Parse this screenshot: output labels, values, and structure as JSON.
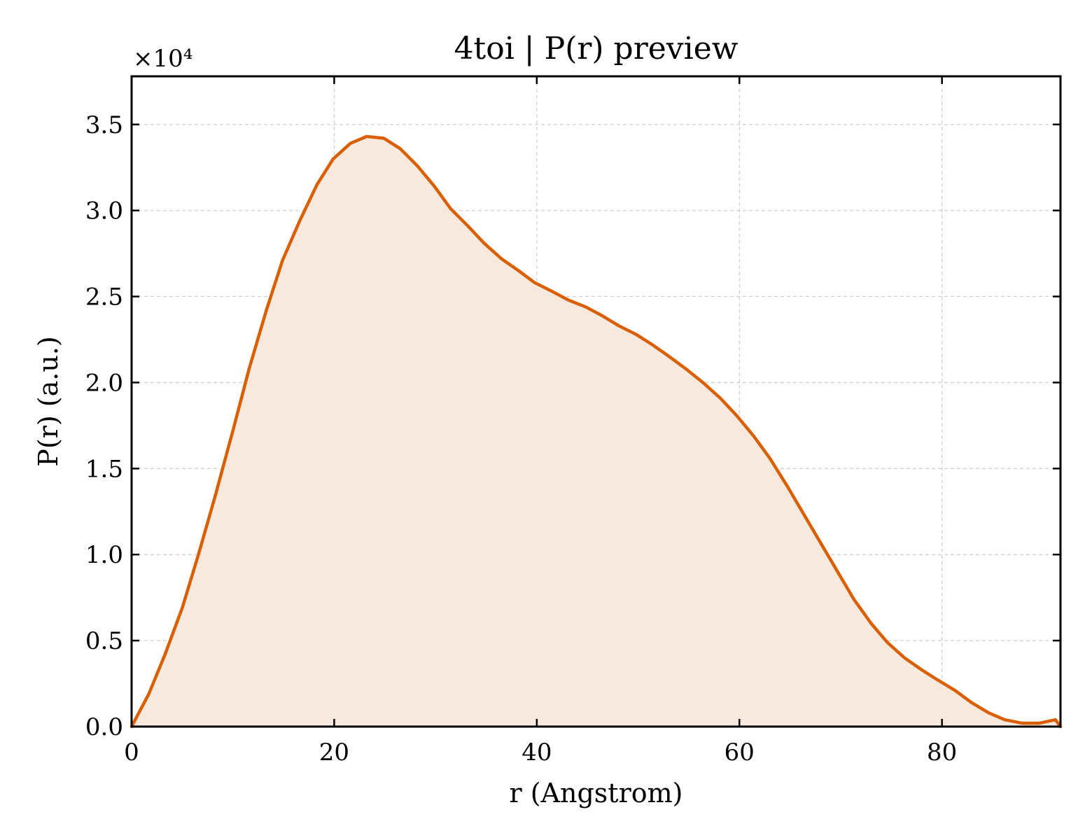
{
  "chart_data": {
    "type": "area",
    "title": "4toi | P(r) preview",
    "xlabel": "r (Angstrom)",
    "ylabel": "P(r) (a.u.)",
    "y_offset_label": "×10⁴",
    "xlim": [
      0,
      91.7
    ],
    "ylim": [
      0,
      37800
    ],
    "grid": true,
    "x_ticks": [
      0,
      20,
      40,
      60,
      80
    ],
    "x_tick_labels": [
      "0",
      "20",
      "40",
      "60",
      "80"
    ],
    "y_ticks": [
      0,
      5000,
      10000,
      15000,
      20000,
      25000,
      30000,
      35000
    ],
    "y_tick_labels": [
      "0.0",
      "0.5",
      "1.0",
      "1.5",
      "2.0",
      "2.5",
      "3.0",
      "3.5"
    ],
    "line_color": "#d95f02",
    "fill_color": "#f8e9df",
    "series": [
      {
        "x": [
          0,
          1.7,
          3.3,
          5.0,
          6.6,
          8.3,
          10.0,
          11.6,
          13.3,
          14.9,
          16.6,
          18.3,
          19.9,
          21.6,
          23.2,
          24.9,
          26.5,
          28.2,
          29.9,
          31.5,
          33.2,
          34.8,
          36.5,
          38.2,
          39.8,
          41.5,
          43.1,
          44.8,
          46.4,
          48.1,
          49.8,
          51.4,
          53.1,
          54.7,
          56.4,
          58.1,
          59.7,
          61.4,
          63.0,
          64.7,
          66.3,
          68.0,
          69.7,
          71.3,
          73.0,
          74.6,
          76.3,
          78.0,
          79.6,
          81.3,
          82.9,
          84.6,
          86.2,
          87.9,
          89.6,
          91.2,
          91.7
        ],
        "y": [
          0,
          1900,
          4200,
          6900,
          10000,
          13500,
          17200,
          20800,
          24200,
          27100,
          29400,
          31500,
          33000,
          33900,
          34300,
          34200,
          33600,
          32600,
          31400,
          30100,
          29100,
          28100,
          27200,
          26500,
          25800,
          25300,
          24800,
          24400,
          23900,
          23300,
          22800,
          22200,
          21500,
          20800,
          20000,
          19100,
          18100,
          16900,
          15600,
          14000,
          12400,
          10700,
          9000,
          7400,
          6000,
          4900,
          4000,
          3300,
          2700,
          2100,
          1400,
          800,
          400,
          200,
          200,
          400,
          0
        ]
      }
    ]
  }
}
